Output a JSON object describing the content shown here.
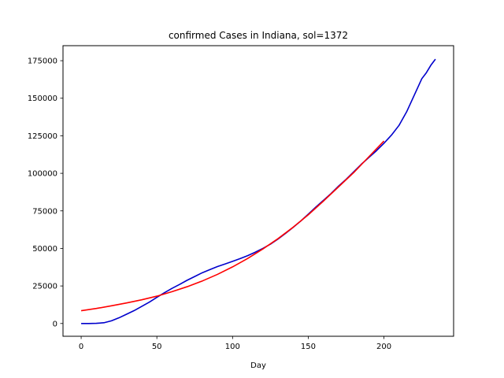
{
  "chart_data": {
    "type": "line",
    "title": "confirmed Cases in Indiana, sol=1372",
    "xlabel": "Day",
    "ylabel": "",
    "xlim": [
      -12,
      246
    ],
    "ylim": [
      -8500,
      185000
    ],
    "x_ticks": [
      0,
      50,
      100,
      150,
      200
    ],
    "x_tick_labels": [
      "0",
      "50",
      "100",
      "150",
      "200"
    ],
    "y_ticks": [
      0,
      25000,
      50000,
      75000,
      100000,
      125000,
      150000,
      175000
    ],
    "y_tick_labels": [
      "0",
      "25000",
      "50000",
      "75000",
      "100000",
      "125000",
      "150000",
      "175000"
    ],
    "grid": false,
    "legend": "none",
    "series": [
      {
        "color": "#0000cc",
        "x": [
          0,
          5,
          10,
          15,
          20,
          25,
          30,
          35,
          40,
          45,
          50,
          55,
          60,
          65,
          70,
          75,
          80,
          85,
          90,
          95,
          100,
          105,
          110,
          115,
          120,
          125,
          130,
          135,
          140,
          145,
          150,
          155,
          160,
          165,
          170,
          175,
          180,
          185,
          190,
          195,
          200,
          205,
          210,
          215,
          220,
          225,
          228,
          231,
          234
        ],
        "y": [
          0,
          0,
          100,
          500,
          1800,
          3800,
          6200,
          8600,
          11400,
          14200,
          17400,
          20500,
          23400,
          26000,
          28800,
          31300,
          33800,
          35900,
          37900,
          39600,
          41400,
          43200,
          45200,
          47500,
          50000,
          52800,
          56200,
          60000,
          64000,
          68200,
          72800,
          77500,
          82000,
          86500,
          91500,
          96000,
          101000,
          106000,
          110500,
          115000,
          120000,
          125500,
          132000,
          141000,
          152000,
          163000,
          167000,
          172000,
          176000
        ]
      },
      {
        "color": "#ff0000",
        "x": [
          0,
          10,
          20,
          30,
          40,
          50,
          60,
          70,
          80,
          90,
          100,
          110,
          120,
          130,
          140,
          150,
          160,
          170,
          180,
          190,
          200
        ],
        "y": [
          8500,
          10000,
          11800,
          13700,
          15800,
          18200,
          21200,
          24500,
          28300,
          32700,
          37700,
          43300,
          49600,
          56500,
          64100,
          72400,
          81500,
          91000,
          100500,
          111000,
          121500
        ]
      }
    ]
  }
}
